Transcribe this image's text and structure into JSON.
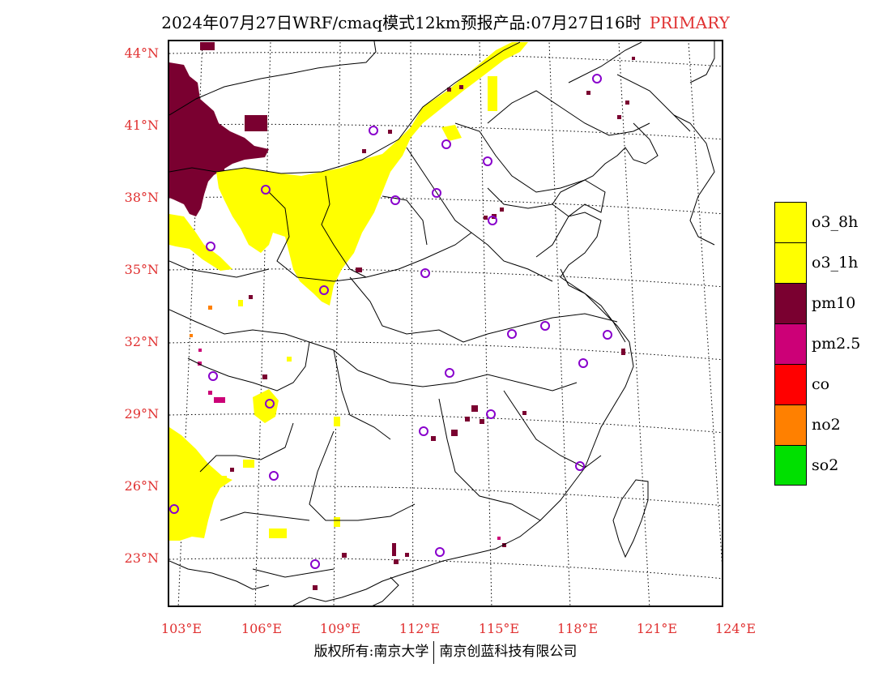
{
  "title": {
    "main": "2024年07月27日WRF/cmaq模式12km预报产品:07月27日16时",
    "tag": "PRIMARY",
    "tag_color": "#e03030"
  },
  "map": {
    "lat_labels": [
      "44°N",
      "41°N",
      "38°N",
      "35°N",
      "32°N",
      "29°N",
      "26°N",
      "23°N"
    ],
    "lon_labels": [
      "103°E",
      "106°E",
      "109°E",
      "112°E",
      "115°E",
      "118°E",
      "121°E",
      "124°E"
    ],
    "label_color": "#e03030",
    "station_marker_color": "#8800cc"
  },
  "legend": {
    "items": [
      {
        "label": "o3_8h",
        "color": "#ffff00"
      },
      {
        "label": "o3_1h",
        "color": "#ffff00"
      },
      {
        "label": "pm10",
        "color": "#7a0030"
      },
      {
        "label": "pm2.5",
        "color": "#cc0077"
      },
      {
        "label": "co",
        "color": "#ff0000"
      },
      {
        "label": "no2",
        "color": "#ff8000"
      },
      {
        "label": "so2",
        "color": "#00e000"
      }
    ]
  },
  "footer": {
    "left": "版权所有:南京大学",
    "right": "南京创蓝科技有限公司"
  }
}
